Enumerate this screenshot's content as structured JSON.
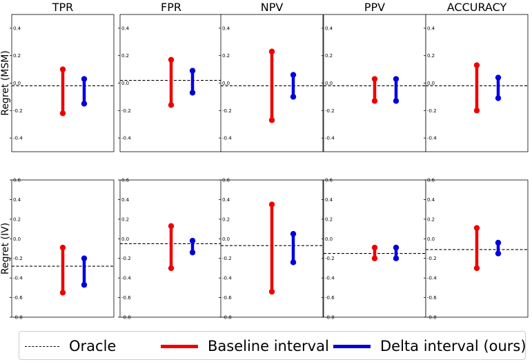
{
  "chart_data": {
    "type": "interval",
    "columns": [
      "TPR",
      "FPR",
      "NPV",
      "PPV",
      "ACCURACY"
    ],
    "rows": [
      {
        "label": "Regret (MSM)",
        "ylim": [
          -0.5,
          0.5
        ],
        "yticks": [
          "0.4",
          "0.2",
          "0.0",
          "-0.2",
          "-0.4"
        ],
        "ytick_values": [
          0.4,
          0.2,
          0.0,
          -0.2,
          -0.4
        ],
        "panels": [
          {
            "oracle": -0.02,
            "baseline": [
              -0.22,
              0.1
            ],
            "delta": [
              -0.15,
              0.03
            ]
          },
          {
            "oracle": 0.02,
            "baseline": [
              -0.16,
              0.17
            ],
            "delta": [
              -0.07,
              0.09
            ]
          },
          {
            "oracle": -0.02,
            "baseline": [
              -0.27,
              0.23
            ],
            "delta": [
              -0.1,
              0.06
            ]
          },
          {
            "oracle": -0.02,
            "baseline": [
              -0.13,
              0.03
            ],
            "delta": [
              -0.13,
              0.03
            ]
          },
          {
            "oracle": -0.02,
            "baseline": [
              -0.2,
              0.13
            ],
            "delta": [
              -0.11,
              0.04
            ]
          }
        ]
      },
      {
        "label": "Regret (IV)",
        "ylim": [
          -0.8,
          0.6
        ],
        "yticks": [
          "0.6",
          "0.4",
          "0.2",
          "0.0",
          "-0.2",
          "-0.4",
          "-0.6",
          "-0.8"
        ],
        "ytick_values": [
          0.6,
          0.4,
          0.2,
          0.0,
          -0.2,
          -0.4,
          -0.6,
          -0.8
        ],
        "panels": [
          {
            "oracle": -0.28,
            "baseline": [
              -0.55,
              -0.09
            ],
            "delta": [
              -0.47,
              -0.2
            ]
          },
          {
            "oracle": -0.05,
            "baseline": [
              -0.3,
              0.13
            ],
            "delta": [
              -0.14,
              -0.02
            ]
          },
          {
            "oracle": -0.07,
            "baseline": [
              -0.54,
              0.35
            ],
            "delta": [
              -0.24,
              0.05
            ]
          },
          {
            "oracle": -0.15,
            "baseline": [
              -0.2,
              -0.09
            ],
            "delta": [
              -0.2,
              -0.09
            ]
          },
          {
            "oracle": -0.11,
            "baseline": [
              -0.3,
              0.11
            ],
            "delta": [
              -0.15,
              -0.04
            ]
          }
        ]
      }
    ],
    "legend": {
      "oracle": "Oracle",
      "baseline": "Baseline interval",
      "delta": "Delta interval (ours)",
      "placement": "bottom"
    },
    "colors": {
      "baseline": "#ee0000",
      "delta": "#0000dd",
      "oracle": "#000000"
    }
  }
}
